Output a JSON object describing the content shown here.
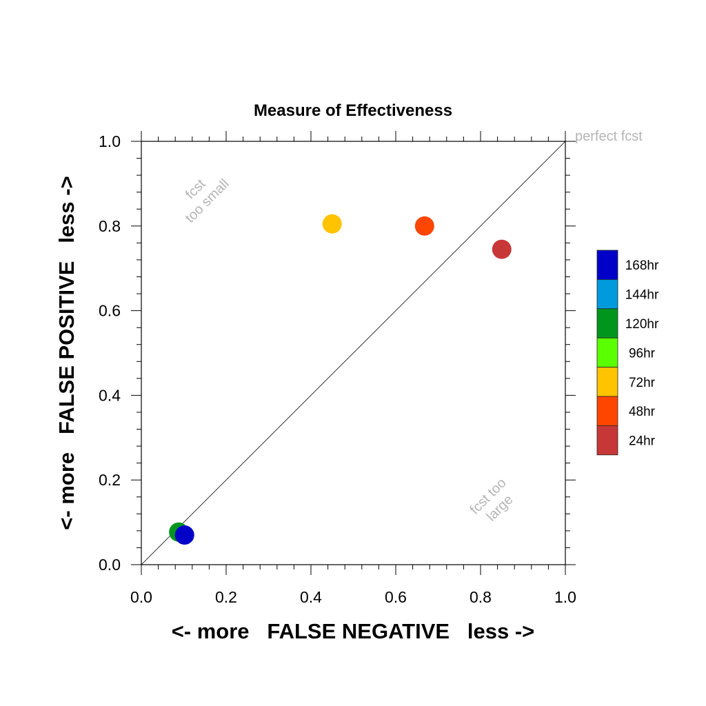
{
  "chart_data": {
    "type": "scatter",
    "title": "Measure of Effectiveness",
    "xlabel": "<- more   FALSE NEGATIVE   less ->",
    "ylabel": "<- more   FALSE POSITIVE   less ->",
    "xlim": [
      0,
      1
    ],
    "ylim": [
      0,
      1
    ],
    "x_ticks": [
      "0.0",
      "0.2",
      "0.4",
      "0.6",
      "0.8",
      "1.0"
    ],
    "y_ticks": [
      "0.0",
      "0.2",
      "0.4",
      "0.6",
      "0.8",
      "1.0"
    ],
    "grid": false,
    "diagonal_reference_line": true,
    "annotations": {
      "perfect": "perfect fcst",
      "too_small_line1": "fcst",
      "too_small_line2": "too small",
      "too_large_line1": "fcst too",
      "too_large_line2": "large"
    },
    "legend": {
      "placement": "right",
      "entries": [
        {
          "label": "168hr",
          "color": "#0000c8"
        },
        {
          "label": "144hr",
          "color": "#009bdc"
        },
        {
          "label": "120hr",
          "color": "#00961e"
        },
        {
          "label": "96hr",
          "color": "#5aff00"
        },
        {
          "label": "72hr",
          "color": "#ffc300"
        },
        {
          "label": "48hr",
          "color": "#ff4600"
        },
        {
          "label": "24hr",
          "color": "#c83737"
        }
      ]
    },
    "points": [
      {
        "series": "24hr",
        "x": 0.85,
        "y": 0.745,
        "color": "#c83737"
      },
      {
        "series": "48hr",
        "x": 0.668,
        "y": 0.8,
        "color": "#ff4600"
      },
      {
        "series": "72hr",
        "x": 0.45,
        "y": 0.805,
        "color": "#ffc300"
      },
      {
        "series": "120hr",
        "x": 0.088,
        "y": 0.077,
        "color": "#00961e"
      },
      {
        "series": "168hr",
        "x": 0.102,
        "y": 0.07,
        "color": "#0000c8"
      }
    ]
  }
}
